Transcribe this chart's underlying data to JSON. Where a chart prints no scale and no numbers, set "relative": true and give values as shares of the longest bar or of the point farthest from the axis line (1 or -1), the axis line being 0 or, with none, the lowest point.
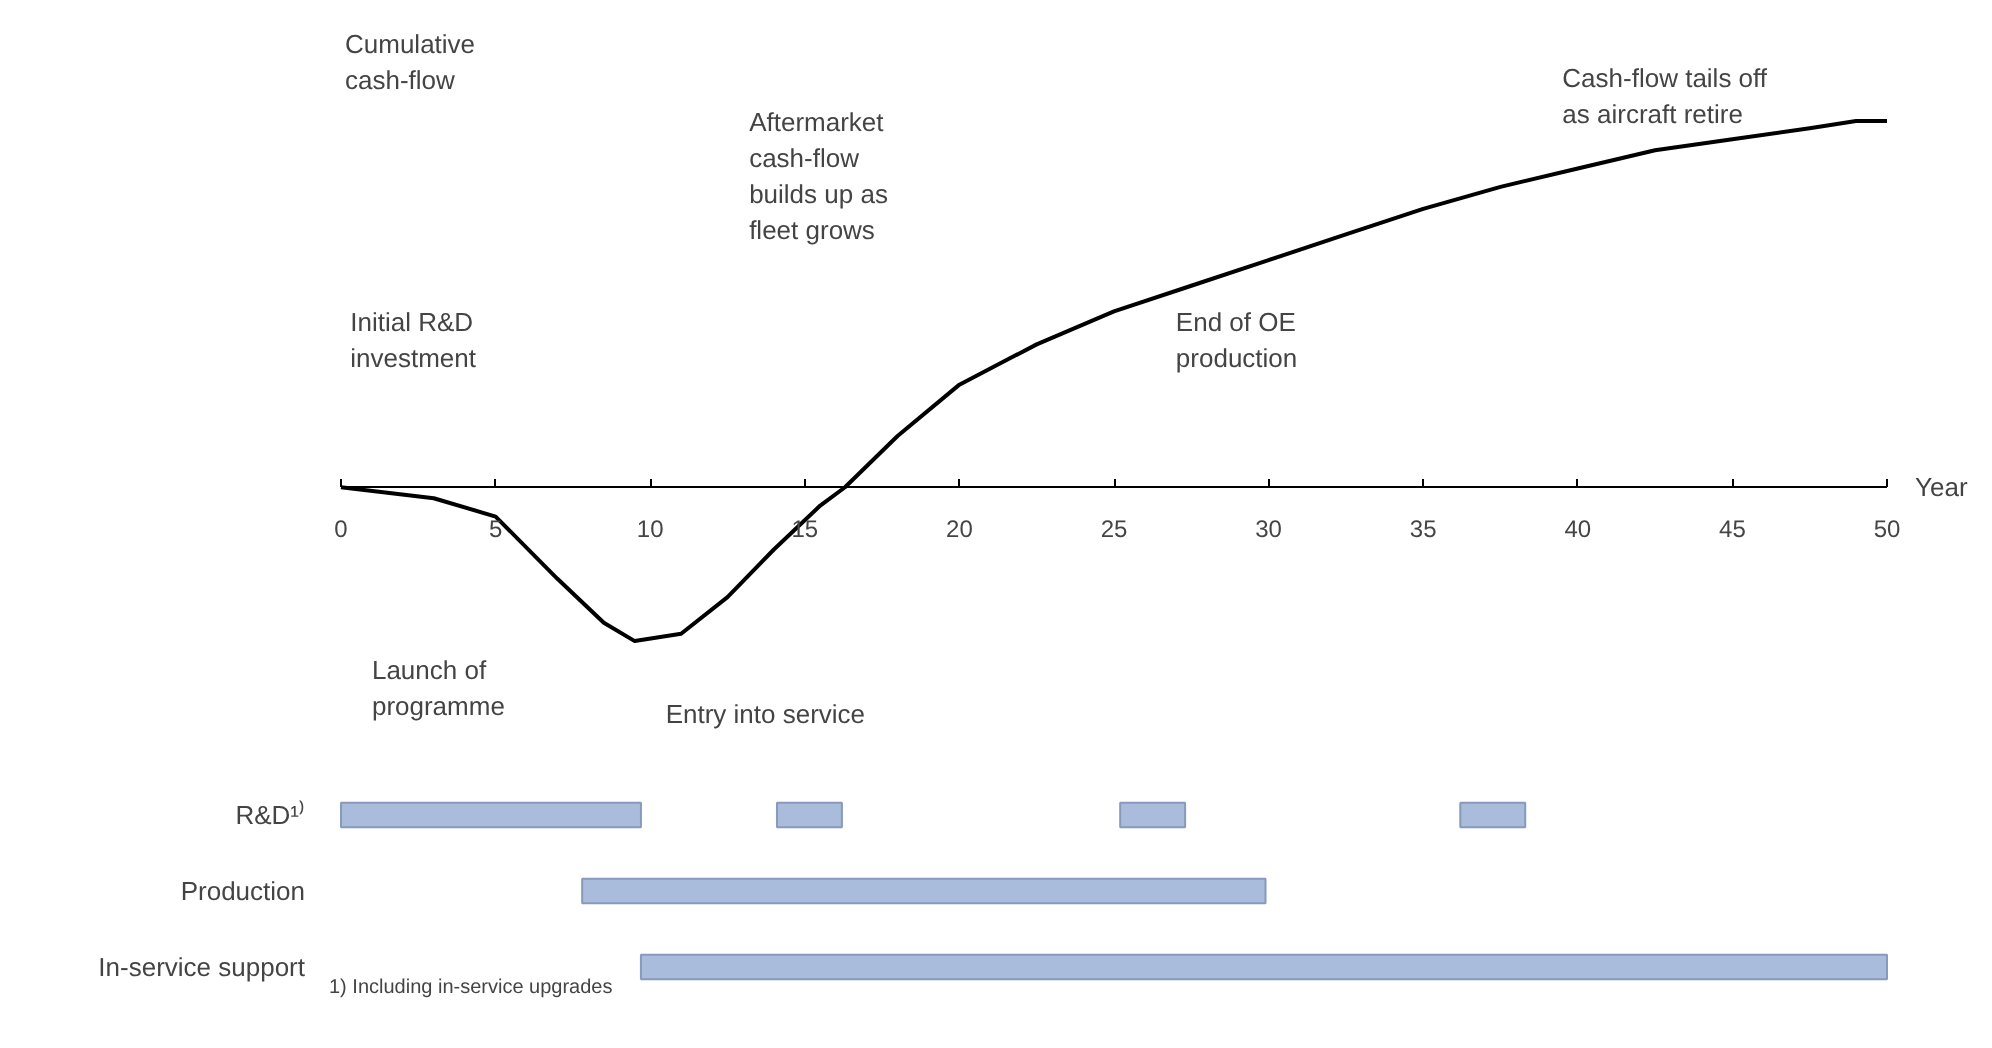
{
  "chart_data": [
    {
      "type": "line",
      "relative": true,
      "xlabel": "Year",
      "ylabel": "Cumulative cash-flow",
      "xlim": [
        0,
        50
      ],
      "xticks": [
        0,
        5,
        10,
        15,
        20,
        25,
        30,
        35,
        40,
        45,
        50
      ],
      "color": "#000000",
      "marker": "none",
      "line_style": "solid",
      "x": [
        0,
        3,
        5,
        7,
        8.5,
        9.5,
        11,
        12.5,
        14,
        15.5,
        16.3,
        18,
        20,
        22.5,
        25,
        27.5,
        30,
        32.5,
        35,
        37.5,
        40,
        42.5,
        45,
        47.5,
        49,
        50
      ],
      "values": [
        0,
        -0.03,
        -0.08,
        -0.25,
        -0.37,
        -0.42,
        -0.4,
        -0.3,
        -0.17,
        -0.05,
        0,
        0.14,
        0.28,
        0.39,
        0.48,
        0.55,
        0.62,
        0.69,
        0.76,
        0.82,
        0.87,
        0.92,
        0.95,
        0.98,
        1.0,
        1.0
      ],
      "annotations": [
        "Initial R&D\ninvestment",
        "Launch of\nprogramme",
        "Entry into service",
        "Aftermarket\ncash-flow\nbuilds up as\nfleet grows",
        "End of OE\nproduction",
        "Cash-flow tails off\nas aircraft retire"
      ]
    },
    {
      "type": "bar",
      "orientation": "horizontal",
      "categories": [
        "R&D¹⁾",
        "Production",
        "In-service support"
      ],
      "xlim": [
        0,
        50
      ],
      "tick_labels": "y",
      "series": [
        {
          "color": "#a9bcdc",
          "base": [
            0,
            7.8,
            9.7
          ],
          "values": [
            9.7,
            22.1,
            40.3
          ]
        },
        {
          "color": "#a9bcdc",
          "base": [
            14.1,
            null,
            null
          ],
          "values": [
            2.1,
            null,
            null
          ]
        },
        {
          "color": "#a9bcdc",
          "base": [
            25.2,
            null,
            null
          ],
          "values": [
            2.1,
            null,
            null
          ]
        },
        {
          "color": "#a9bcdc",
          "base": [
            36.2,
            null,
            null
          ],
          "values": [
            2.1,
            null,
            null
          ]
        }
      ],
      "annotations": [
        "1) Including in-service upgrades"
      ]
    }
  ]
}
